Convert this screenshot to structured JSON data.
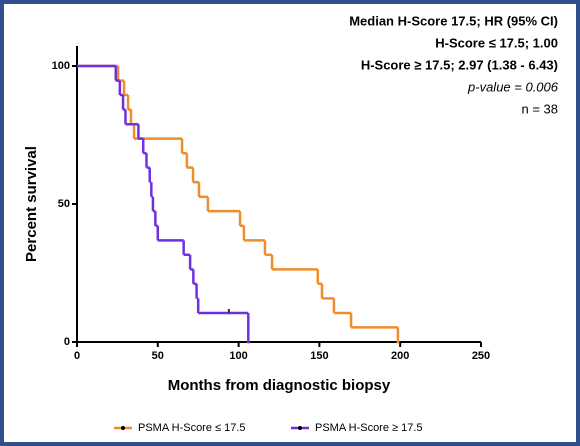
{
  "chart_data": {
    "type": "line",
    "step": "post",
    "xlabel": "Months from diagnostic biopsy",
    "ylabel": "Percent survival",
    "xlim": [
      0,
      250
    ],
    "xticks": [
      0,
      50,
      100,
      150,
      200,
      250
    ],
    "ylim": [
      0,
      100
    ],
    "yticks": [
      0,
      50,
      100
    ],
    "annotations": [
      {
        "text": "Median H-Score 17.5; HR (95% CI)",
        "color": "#000000",
        "weight": "bold",
        "style": "normal"
      },
      {
        "text": "H-Score ≤ 17.5; 1.00",
        "color": "#ef8c2c",
        "weight": "bold",
        "style": "normal"
      },
      {
        "text": "H-Score ≥ 17.5; 2.97 (1.38 - 6.43)",
        "color": "#7030e0",
        "weight": "bold",
        "style": "normal"
      },
      {
        "text": "p-value = 0.006",
        "color": "#000000",
        "weight": "normal",
        "style": "italic"
      },
      {
        "text": "n = 38",
        "color": "#000000",
        "weight": "normal",
        "style": "normal"
      }
    ],
    "series": [
      {
        "name": "PSMA H-Score ≤ 17.5",
        "color": "#ef8c2c",
        "x": [
          0,
          25.4,
          29.1,
          31.6,
          33.4,
          35.3,
          65,
          68,
          71.8,
          75.5,
          81,
          100.9,
          103.3,
          116.3,
          120.7,
          149,
          151.6,
          159,
          169.6,
          198.6
        ],
        "values": [
          100,
          94.7,
          89.5,
          84.2,
          78.9,
          73.7,
          68.4,
          63.2,
          57.9,
          52.6,
          47.4,
          42.1,
          36.8,
          31.6,
          26.3,
          21.1,
          15.8,
          10.5,
          5.3,
          0
        ]
      },
      {
        "name": "PSMA H-Score ≥ 17.5",
        "color": "#7030e0",
        "x": [
          0,
          24,
          26.5,
          28.5,
          30,
          38,
          41,
          43,
          45,
          46,
          47,
          48.5,
          50,
          66,
          70,
          72,
          74,
          75,
          106
        ],
        "values": [
          100,
          94.7,
          89.5,
          84.2,
          78.9,
          73.7,
          68.4,
          63.2,
          57.9,
          52.6,
          47.4,
          42.1,
          36.8,
          31.6,
          26.3,
          21.1,
          15.8,
          10.5,
          0
        ],
        "censored_x": [
          94
        ],
        "censored_values": [
          10.5
        ]
      }
    ]
  }
}
